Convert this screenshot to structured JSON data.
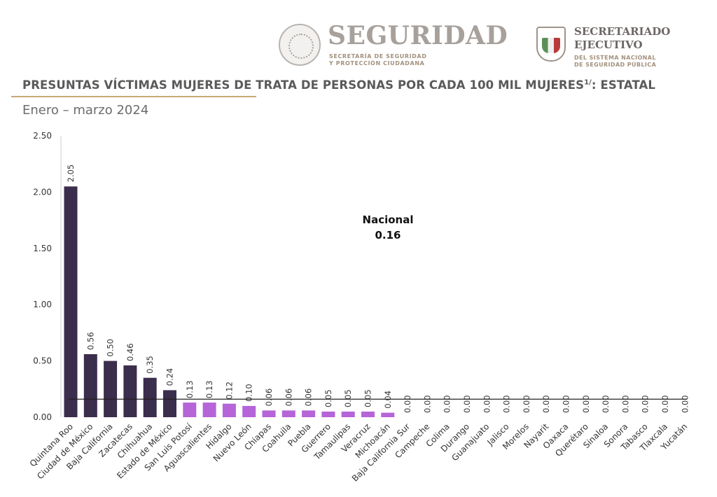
{
  "header": {
    "seguridad": "SEGURIDAD",
    "seguridad_sub_line1": "SECRETARÍA DE SEGURIDAD",
    "seguridad_sub_line2": "Y PROTECCIÓN CIUDADANA",
    "secretariado_line1": "SECRETARIADO",
    "secretariado_line2": "EJECUTIVO",
    "secretariado_sub_line1": "DEL SISTEMA NACIONAL",
    "secretariado_sub_line2": "DE SEGURIDAD PÚBLICA"
  },
  "title": "PRESUNTAS VÍCTIMAS MUJERES DE TRATA DE PERSONAS POR CADA 100 MIL MUJERES",
  "title_sup": "1/",
  "title_suffix": ": ESTATAL",
  "subtitle": "Enero – marzo 2024",
  "chart_data": {
    "type": "bar",
    "categories": [
      "Quintana Roo",
      "Ciudad de México",
      "Baja California",
      "Zacatecas",
      "Chihuahua",
      "Estado de México",
      "San Luis Potosí",
      "Aguascalientes",
      "Hidalgo",
      "Nuevo León",
      "Chiapas",
      "Coahuila",
      "Puebla",
      "Guerrero",
      "Tamaulipas",
      "Veracruz",
      "Michoacán",
      "Baja California Sur",
      "Campeche",
      "Colima",
      "Durango",
      "Guanajuato",
      "Jalisco",
      "Morelos",
      "Nayarit",
      "Oaxaca",
      "Querétaro",
      "Sinaloa",
      "Sonora",
      "Tabasco",
      "Tlaxcala",
      "Yucatán"
    ],
    "values": [
      2.05,
      0.56,
      0.5,
      0.46,
      0.35,
      0.24,
      0.13,
      0.13,
      0.12,
      0.1,
      0.06,
      0.06,
      0.06,
      0.05,
      0.05,
      0.05,
      0.04,
      0.0,
      0.0,
      0.0,
      0.0,
      0.0,
      0.0,
      0.0,
      0.0,
      0.0,
      0.0,
      0.0,
      0.0,
      0.0,
      0.0,
      0.0
    ],
    "value_labels": [
      "2.05",
      "0.56",
      "0.50",
      "0.46",
      "0.35",
      "0.24",
      "0.13",
      "0.13",
      "0.12",
      "0.10",
      "0.06",
      "0.06",
      "0.06",
      "0.05",
      "0.05",
      "0.05",
      "0.04",
      "0.00",
      "0.00",
      "0.00",
      "0.00",
      "0.00",
      "0.00",
      "0.00",
      "0.00",
      "0.00",
      "0.00",
      "0.00",
      "0.00",
      "0.00",
      "0.00",
      "0.00"
    ],
    "yticks": [
      "0.00",
      "0.50",
      "1.00",
      "1.50",
      "2.00",
      "2.50"
    ],
    "ylim": [
      0,
      2.5
    ],
    "national": {
      "label": "Nacional",
      "value": 0.16,
      "value_label": "0.16"
    },
    "colors": {
      "dark": "#3b2d4c",
      "light": "#b565d8",
      "line": "#222222"
    },
    "dark_count": 6,
    "grid": false
  }
}
